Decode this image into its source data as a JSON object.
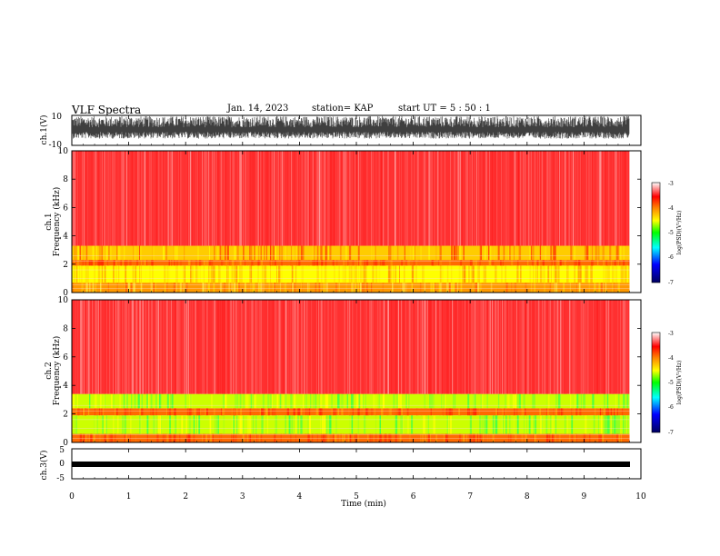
{
  "header": {
    "title": "VLF Spectra",
    "date": "Jan. 14, 2023",
    "station": "station= KAP",
    "start": "start  UT =   5  : 50 : 1"
  },
  "chart_data": [
    {
      "type": "line",
      "panel": "waveform ch.1",
      "ylabel": "ch.1(V)",
      "ylim": [
        -10,
        10
      ],
      "yticks": [
        "10",
        "-10"
      ],
      "trace": "dense broadband signal filling roughly -5 to +9 V",
      "xlim": [
        0,
        10
      ]
    },
    {
      "type": "heatmap",
      "panel": "spectrogram ch.1",
      "ylabel": "ch.1\nFrequency  (kHz)",
      "ylim": [
        0,
        10
      ],
      "yticks": [
        "0",
        "2",
        "4",
        "6",
        "8",
        "10"
      ],
      "xlim": [
        0,
        9.8
      ],
      "bands": [
        {
          "from": 0.0,
          "to": 0.7,
          "level": "orange-yellow"
        },
        {
          "from": 0.7,
          "to": 1.9,
          "level": "yellow"
        },
        {
          "from": 1.9,
          "to": 2.3,
          "level": "orange"
        },
        {
          "from": 2.3,
          "to": 3.3,
          "level": "yellow-orange"
        },
        {
          "from": 3.3,
          "to": 10,
          "level": "red"
        }
      ],
      "colorbar": {
        "label": "log(PSD)(V²/Hz)",
        "range": [
          -7,
          -3
        ],
        "ticks": [
          "-3",
          "-4",
          "-5",
          "-6",
          "-7"
        ]
      }
    },
    {
      "type": "heatmap",
      "panel": "spectrogram ch.2",
      "ylabel": "ch.2\nFrequency  (kHz)",
      "ylim": [
        0,
        10
      ],
      "yticks": [
        "0",
        "2",
        "4",
        "6",
        "8",
        "10"
      ],
      "xlim": [
        0,
        9.8
      ],
      "bands": [
        {
          "from": 0.0,
          "to": 0.6,
          "level": "orange"
        },
        {
          "from": 0.6,
          "to": 1.9,
          "level": "green-yellow"
        },
        {
          "from": 1.9,
          "to": 2.4,
          "level": "orange"
        },
        {
          "from": 2.4,
          "to": 3.4,
          "level": "green-yellow"
        },
        {
          "from": 3.4,
          "to": 10,
          "level": "red"
        }
      ],
      "colorbar": {
        "label": "log(PSD)(V²/Hz)",
        "range": [
          -7,
          -3
        ],
        "ticks": [
          "-3",
          "-4",
          "-5",
          "-6",
          "-7"
        ]
      }
    },
    {
      "type": "line",
      "panel": "waveform ch.3",
      "ylabel": "ch.3(V)",
      "ylim": [
        -5,
        5
      ],
      "yticks": [
        "5",
        "0",
        "-5"
      ],
      "trace": "flat band from about -1 to 0 V",
      "xlim": [
        0,
        10
      ]
    }
  ],
  "x_axis": {
    "xlabel": "Time  (min)",
    "xlim": [
      0,
      10
    ],
    "ticks": [
      "0",
      "1",
      "2",
      "3",
      "4",
      "5",
      "6",
      "7",
      "8",
      "9",
      "10"
    ]
  },
  "colormap": [
    "#000080",
    "#0000ff",
    "#00ff00",
    "#ffff00",
    "#ff0000",
    "#ffffff"
  ]
}
